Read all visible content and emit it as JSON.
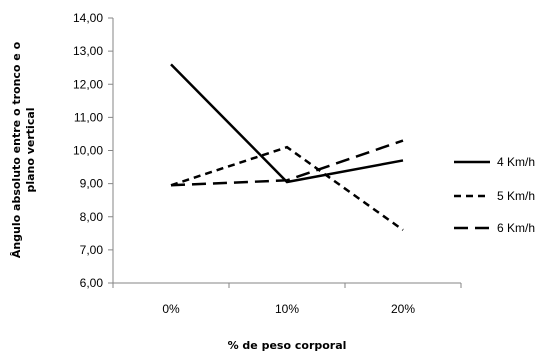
{
  "chart_data": {
    "type": "line",
    "categories": [
      "0%",
      "10%",
      "20%"
    ],
    "series": [
      {
        "name": "4 Km/h",
        "values": [
          12.6,
          9.05,
          9.7
        ],
        "dash": "solid"
      },
      {
        "name": "5 Km/h",
        "values": [
          8.95,
          10.1,
          7.6
        ],
        "dash": "short"
      },
      {
        "name": "6 Km/h",
        "values": [
          8.95,
          9.1,
          10.3
        ],
        "dash": "long"
      }
    ],
    "title": "",
    "xlabel": "% de peso corporal",
    "ylabel": "Ângulo absoluto entre o tronco e o plano vertical",
    "ylim": [
      6,
      14
    ],
    "yticks": [
      "6,00",
      "7,00",
      "8,00",
      "9,00",
      "10,00",
      "11,00",
      "12,00",
      "13,00",
      "14,00"
    ],
    "grid": false,
    "legend_position": "right",
    "line_color": "#000000"
  }
}
